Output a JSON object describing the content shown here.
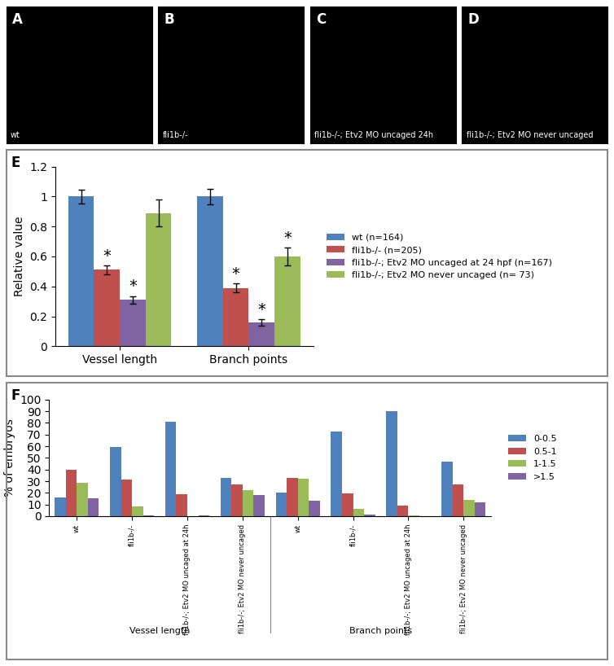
{
  "chart_data": [
    {
      "type": "image",
      "panel": "A",
      "label": "wt"
    },
    {
      "type": "image",
      "panel": "B",
      "label": "fli1b-/-"
    },
    {
      "type": "image",
      "panel": "C",
      "label": "fli1b-/-; Etv2 MO uncaged 24h"
    },
    {
      "type": "image",
      "panel": "D",
      "label": "fli1b-/-; Etv2 MO never uncaged"
    },
    {
      "type": "bar",
      "panel": "E",
      "y_label": "Relative value",
      "categories": [
        "Vessel length",
        "Branch points"
      ],
      "ylim": [
        0,
        1.2
      ],
      "yticks": [
        0,
        0.2,
        0.4,
        0.6,
        0.8,
        1,
        1.2
      ],
      "legend": "right",
      "series": [
        {
          "name": "wt (n=164)",
          "color": "#4F81BD",
          "values": [
            1,
            1
          ],
          "errors": [
            0.045,
            0.05
          ],
          "significance": [
            null,
            null
          ]
        },
        {
          "name": "fli1b-/- (n=205)",
          "color": "#C0504D",
          "values": [
            0.51,
            0.39
          ],
          "errors": [
            0.03,
            0.03
          ],
          "significance": [
            "*",
            "*"
          ]
        },
        {
          "name": "fli1b-/-; Etv2 MO uncaged at 24 hpf (n=167)",
          "color": "#8064A2",
          "values": [
            0.31,
            0.16
          ],
          "errors": [
            0.025,
            0.02
          ],
          "significance": [
            "*",
            "*"
          ]
        },
        {
          "name": "fli1b-/-; Etv2 MO never uncaged (n= 73)",
          "color": "#9BBB59",
          "values": [
            0.89,
            0.6
          ],
          "errors": [
            0.09,
            0.06
          ],
          "significance": [
            null,
            "*"
          ]
        }
      ]
    },
    {
      "type": "bar",
      "panel": "F",
      "y_label": "% of embryos",
      "categories": [
        "wt",
        "fli1b-/-",
        "fli1b-/-; Etv2 MO uncaged at 24h",
        "fli1b-/-; Etv2 MO never uncaged",
        "wt",
        "fli1b-/-",
        "fli1b-/-; Etv2 MO uncaged at 24h",
        "fli1b-/-; Etv2 MO never uncaged"
      ],
      "category_groups": [
        "Vessel length",
        "Vessel length",
        "Vessel length",
        "Vessel length",
        "Branch points",
        "Branch points",
        "Branch points",
        "Branch points"
      ],
      "ylim": [
        0,
        100
      ],
      "yticks": [
        0,
        10,
        20,
        30,
        40,
        50,
        60,
        70,
        80,
        90,
        100
      ],
      "legend": "right",
      "series": [
        {
          "name": "0-0.5",
          "color": "#4F81BD",
          "values": [
            16,
            59.5,
            81,
            32.5,
            20.5,
            72.5,
            90,
            46.5
          ]
        },
        {
          "name": "0.5-1",
          "color": "#C0504D",
          "values": [
            40,
            31.5,
            18.5,
            27.5,
            33,
            19.5,
            9,
            27.5
          ]
        },
        {
          "name": "1-1.5",
          "color": "#9BBB59",
          "values": [
            28.5,
            8,
            0,
            22,
            32,
            6.5,
            1,
            14
          ]
        },
        {
          "name": ">1.5",
          "color": "#8064A2",
          "values": [
            15.5,
            0.5,
            0.5,
            18,
            13.5,
            1.5,
            0,
            12
          ]
        }
      ]
    }
  ]
}
